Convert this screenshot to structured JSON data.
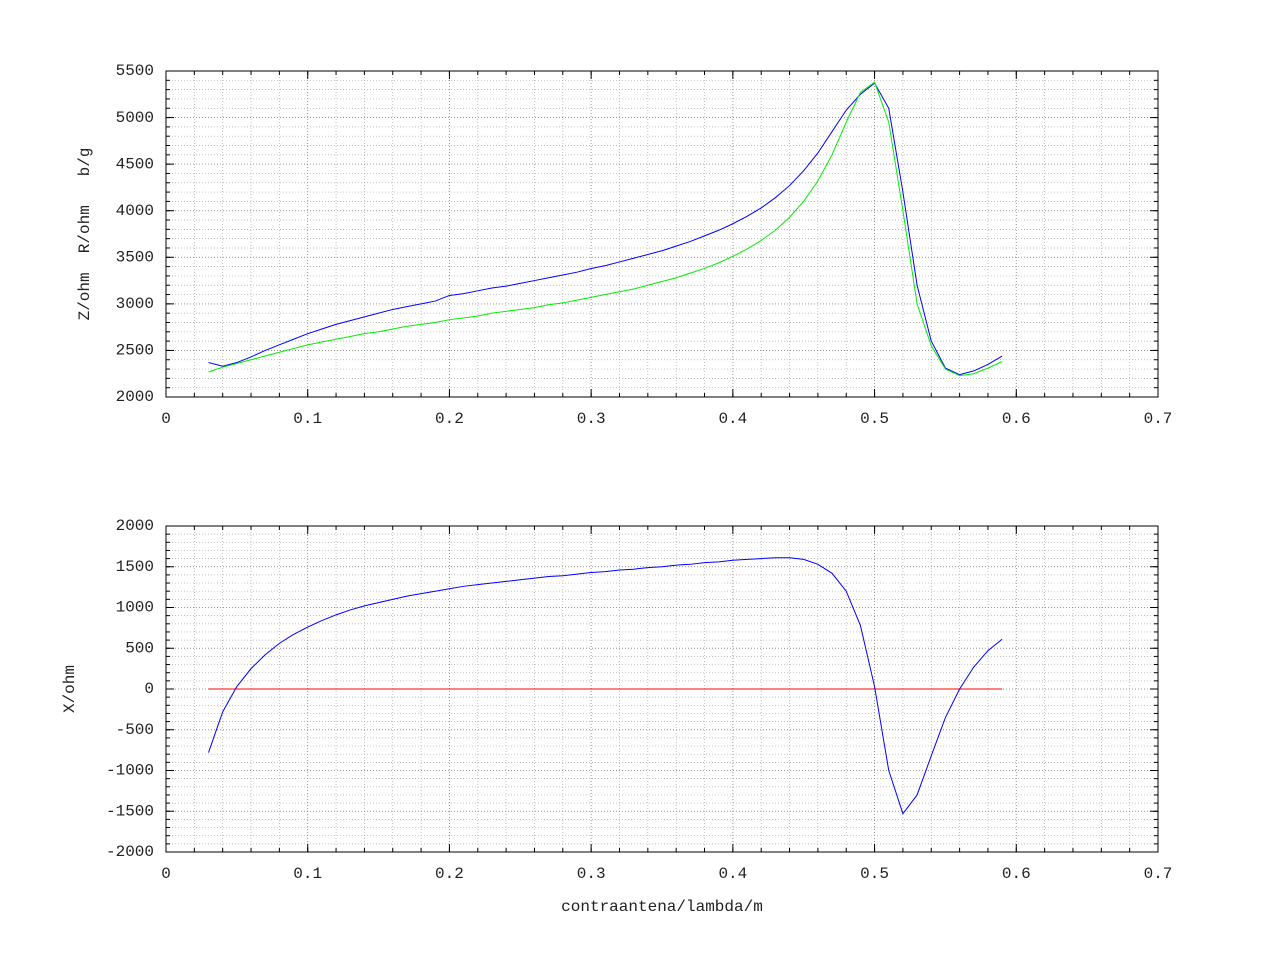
{
  "chart_data": [
    {
      "type": "line",
      "ylabel": "Z/ohm  R/ohm   b/g",
      "xlim": [
        0,
        0.7
      ],
      "xticks": [
        0,
        0.1,
        0.2,
        0.3,
        0.4,
        0.5,
        0.6,
        0.7
      ],
      "ylim": [
        2000,
        5500
      ],
      "yticks": [
        2000,
        2500,
        3000,
        3500,
        4000,
        4500,
        5000,
        5500
      ],
      "grid": true,
      "xminor": 0.02,
      "yminor": 100,
      "series": [
        {
          "color": "#0000ff",
          "x": [
            0.03,
            0.04,
            0.05,
            0.06,
            0.07,
            0.08,
            0.09,
            0.1,
            0.11,
            0.12,
            0.13,
            0.14,
            0.15,
            0.16,
            0.17,
            0.18,
            0.19,
            0.2,
            0.21,
            0.22,
            0.23,
            0.24,
            0.25,
            0.26,
            0.27,
            0.28,
            0.29,
            0.3,
            0.31,
            0.32,
            0.33,
            0.34,
            0.35,
            0.36,
            0.37,
            0.38,
            0.39,
            0.4,
            0.41,
            0.42,
            0.43,
            0.44,
            0.45,
            0.46,
            0.47,
            0.48,
            0.49,
            0.5,
            0.51,
            0.52,
            0.53,
            0.54,
            0.55,
            0.56,
            0.57,
            0.58,
            0.59
          ],
          "values": [
            2370,
            2330,
            2370,
            2430,
            2500,
            2560,
            2620,
            2680,
            2730,
            2780,
            2820,
            2860,
            2900,
            2940,
            2970,
            3000,
            3030,
            3090,
            3110,
            3140,
            3170,
            3190,
            3220,
            3250,
            3280,
            3310,
            3340,
            3380,
            3410,
            3450,
            3490,
            3530,
            3570,
            3620,
            3670,
            3730,
            3790,
            3860,
            3940,
            4030,
            4140,
            4270,
            4430,
            4620,
            4850,
            5080,
            5250,
            5370,
            5100,
            4200,
            3200,
            2600,
            2310,
            2240,
            2280,
            2350,
            2440
          ]
        },
        {
          "color": "#00ee00",
          "x": [
            0.03,
            0.04,
            0.05,
            0.06,
            0.07,
            0.08,
            0.09,
            0.1,
            0.11,
            0.12,
            0.13,
            0.14,
            0.15,
            0.16,
            0.17,
            0.18,
            0.19,
            0.2,
            0.21,
            0.22,
            0.23,
            0.24,
            0.25,
            0.26,
            0.27,
            0.28,
            0.29,
            0.3,
            0.31,
            0.32,
            0.33,
            0.34,
            0.35,
            0.36,
            0.37,
            0.38,
            0.39,
            0.4,
            0.41,
            0.42,
            0.43,
            0.44,
            0.45,
            0.46,
            0.47,
            0.48,
            0.49,
            0.5,
            0.51,
            0.52,
            0.53,
            0.54,
            0.55,
            0.56,
            0.57,
            0.58,
            0.59
          ],
          "values": [
            2270,
            2320,
            2360,
            2400,
            2440,
            2480,
            2520,
            2560,
            2590,
            2620,
            2650,
            2680,
            2700,
            2730,
            2760,
            2780,
            2800,
            2830,
            2850,
            2870,
            2900,
            2920,
            2940,
            2960,
            2990,
            3010,
            3040,
            3070,
            3100,
            3130,
            3160,
            3200,
            3240,
            3280,
            3330,
            3380,
            3440,
            3510,
            3590,
            3680,
            3790,
            3930,
            4100,
            4320,
            4600,
            4950,
            5270,
            5380,
            4950,
            4000,
            3000,
            2550,
            2300,
            2230,
            2250,
            2310,
            2380
          ]
        }
      ]
    },
    {
      "type": "line",
      "ylabel": "X/ohm",
      "xlabel": "contraantena/lambda/m",
      "xlim": [
        0,
        0.7
      ],
      "xticks": [
        0,
        0.1,
        0.2,
        0.3,
        0.4,
        0.5,
        0.6,
        0.7
      ],
      "ylim": [
        -2000,
        2000
      ],
      "yticks": [
        -2000,
        -1500,
        -1000,
        -500,
        0,
        500,
        1000,
        1500,
        2000
      ],
      "grid": true,
      "xminor": 0.02,
      "yminor": 100,
      "series": [
        {
          "color": "#ff0000",
          "x": [
            0.03,
            0.59
          ],
          "values": [
            0,
            0
          ]
        },
        {
          "color": "#0000ff",
          "x": [
            0.03,
            0.04,
            0.05,
            0.06,
            0.07,
            0.08,
            0.09,
            0.1,
            0.11,
            0.12,
            0.13,
            0.14,
            0.15,
            0.16,
            0.17,
            0.18,
            0.19,
            0.2,
            0.21,
            0.22,
            0.23,
            0.24,
            0.25,
            0.26,
            0.27,
            0.28,
            0.29,
            0.3,
            0.31,
            0.32,
            0.33,
            0.34,
            0.35,
            0.36,
            0.37,
            0.38,
            0.39,
            0.4,
            0.41,
            0.42,
            0.43,
            0.44,
            0.45,
            0.46,
            0.47,
            0.48,
            0.49,
            0.5,
            0.51,
            0.52,
            0.53,
            0.54,
            0.55,
            0.56,
            0.57,
            0.58,
            0.59
          ],
          "values": [
            -780,
            -280,
            30,
            250,
            420,
            560,
            670,
            760,
            840,
            910,
            970,
            1020,
            1060,
            1100,
            1140,
            1170,
            1200,
            1230,
            1260,
            1280,
            1300,
            1320,
            1340,
            1360,
            1380,
            1390,
            1410,
            1430,
            1440,
            1460,
            1470,
            1490,
            1500,
            1520,
            1530,
            1550,
            1560,
            1580,
            1590,
            1600,
            1610,
            1610,
            1590,
            1530,
            1420,
            1200,
            780,
            30,
            -1000,
            -1530,
            -1300,
            -820,
            -350,
            0,
            270,
            470,
            610
          ]
        }
      ]
    }
  ]
}
